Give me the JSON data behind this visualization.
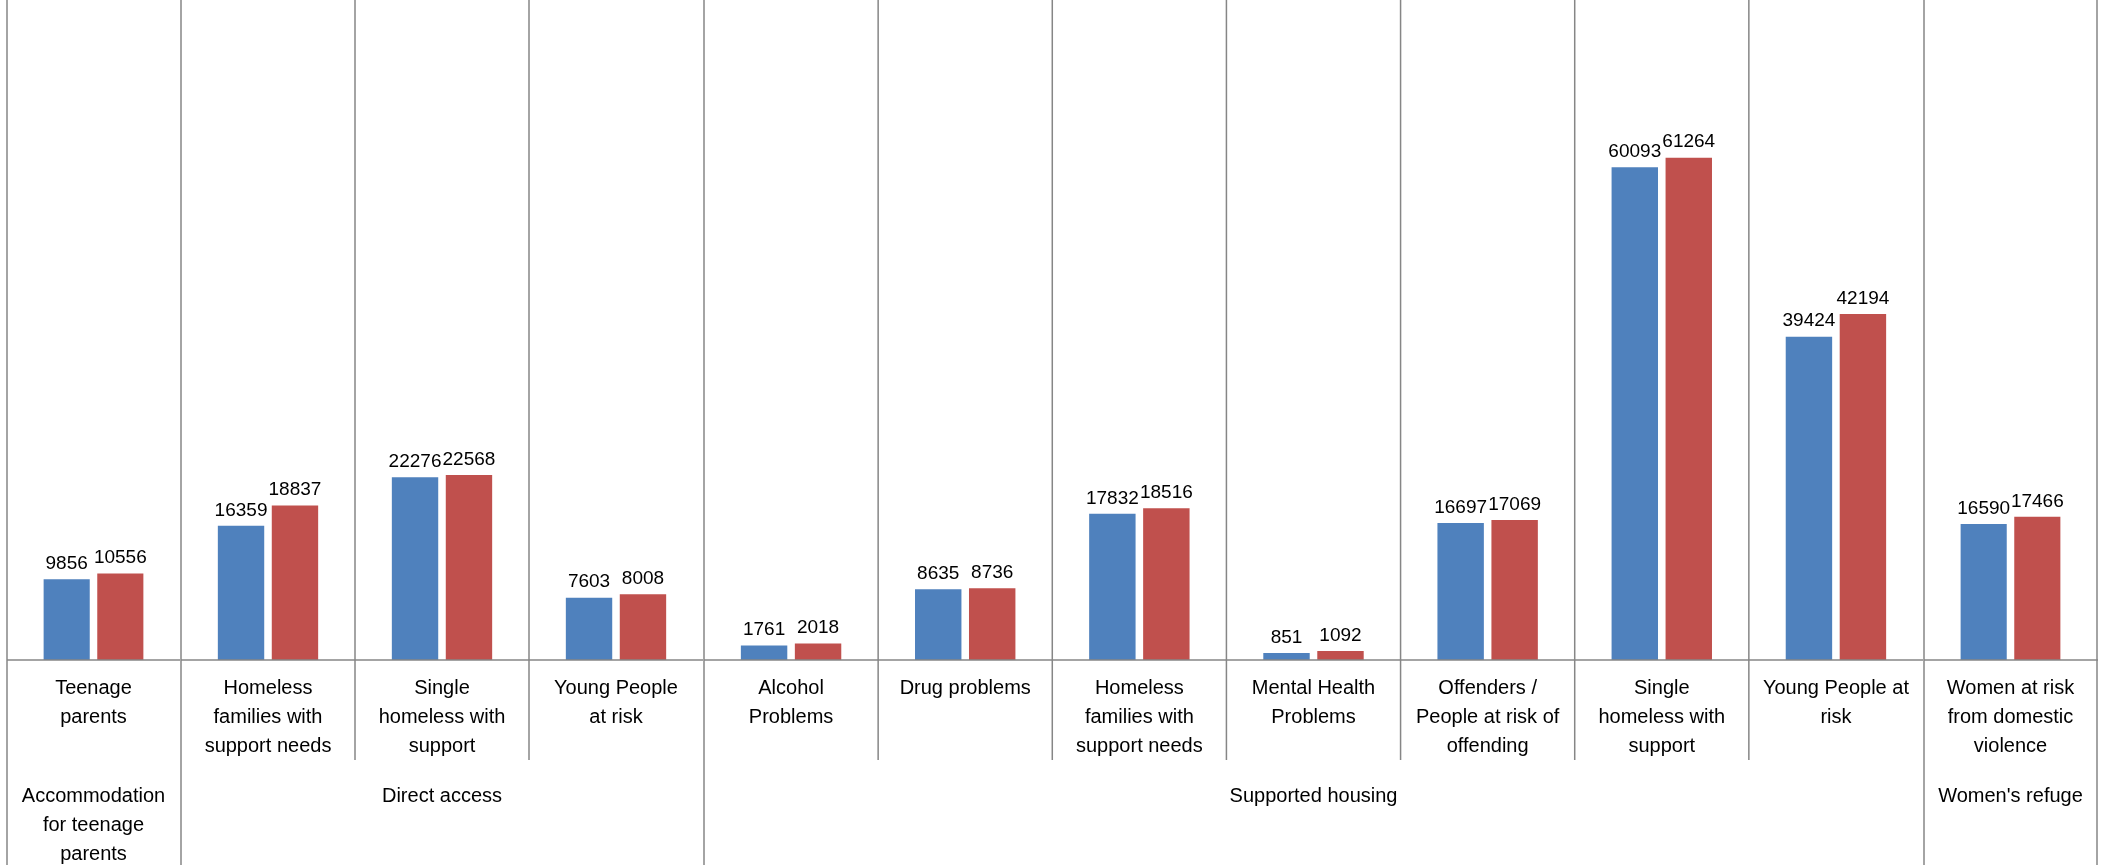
{
  "chart_data": [
    {
      "type": "bar",
      "xlabel": "Accommodation for teenage parents",
      "categories": [
        "Teenage parents"
      ],
      "data_labels": true,
      "series": [
        {
          "color": "#4f81bd",
          "values": [
            9856
          ]
        },
        {
          "color": "#c0504d",
          "values": [
            10556
          ]
        }
      ]
    },
    {
      "type": "bar",
      "xlabel": "Direct access",
      "categories": [
        "Homeless families with support needs",
        "Single homeless with support",
        "Young People at risk"
      ],
      "data_labels": true,
      "series": [
        {
          "color": "#4f81bd",
          "values": [
            16359,
            22276,
            7603
          ]
        },
        {
          "color": "#c0504d",
          "values": [
            18837,
            22568,
            8008
          ]
        }
      ]
    },
    {
      "type": "bar",
      "xlabel": "Supported housing",
      "categories": [
        "Alcohol Problems",
        "Drug problems",
        "Homeless families with support needs",
        "Mental Health Problems",
        "Offenders / People at risk of offending",
        "Single homeless with support",
        "Young People at risk"
      ],
      "data_labels": true,
      "series": [
        {
          "color": "#4f81bd",
          "values": [
            1761,
            8635,
            17832,
            851,
            16697,
            60093,
            39424
          ]
        },
        {
          "color": "#c0504d",
          "values": [
            2018,
            8736,
            18516,
            1092,
            17069,
            61264,
            42194
          ]
        }
      ]
    },
    {
      "type": "bar",
      "xlabel": "Women's refuge",
      "categories": [
        "Women at risk from domestic violence"
      ],
      "data_labels": true,
      "series": [
        {
          "color": "#4f81bd",
          "values": [
            16590
          ]
        },
        {
          "color": "#c0504d",
          "values": [
            17466
          ]
        }
      ]
    }
  ]
}
